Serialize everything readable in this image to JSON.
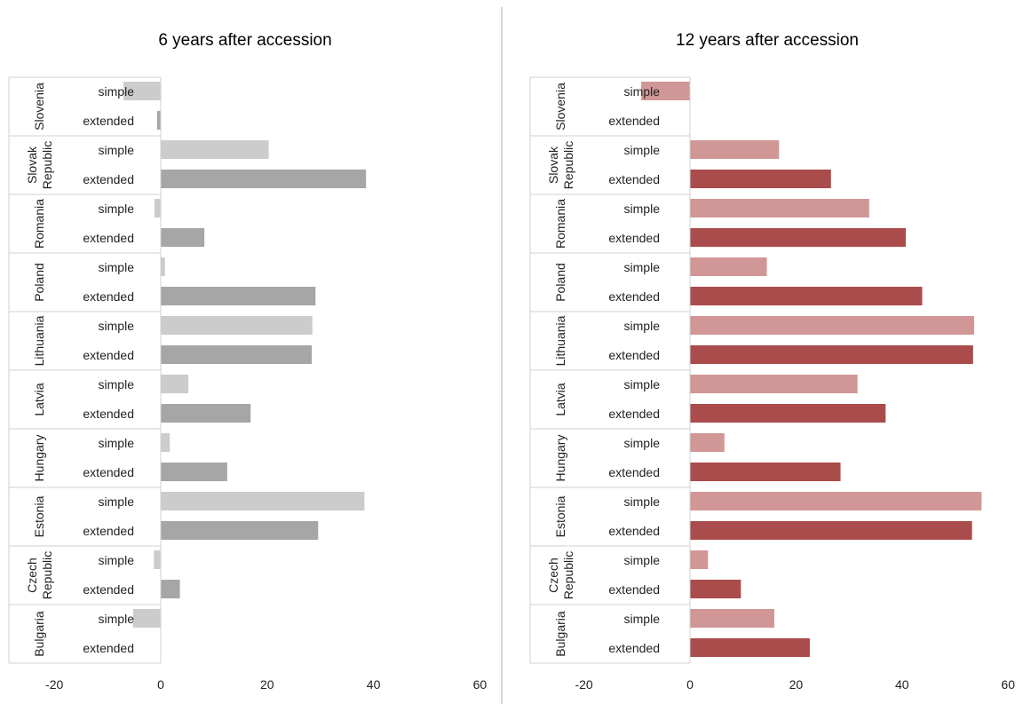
{
  "chart_data": [
    {
      "type": "bar",
      "orientation": "horizontal",
      "title": "6 years after accession",
      "countries": [
        "Slovenia",
        "Slovak Republic",
        "Romania",
        "Poland",
        "Lithuania",
        "Latvia",
        "Hungary",
        "Estonia",
        "Czech Republic",
        "Bulgaria"
      ],
      "country_label_lines": [
        [
          "Slovenia"
        ],
        [
          "Slovak",
          "Republic"
        ],
        [
          "Romania"
        ],
        [
          "Poland"
        ],
        [
          "Lithuania"
        ],
        [
          "Latvia"
        ],
        [
          "Hungary"
        ],
        [
          "Estonia"
        ],
        [
          "Czech",
          "Republic"
        ],
        [
          "Bulgaria"
        ]
      ],
      "subcategories": [
        "simple",
        "extended"
      ],
      "series": [
        {
          "name": "simple",
          "values": [
            -7,
            20.3,
            -1.2,
            0.8,
            28.5,
            5.2,
            1.7,
            38.3,
            -1.3,
            -5.2
          ]
        },
        {
          "name": "extended",
          "values": [
            -0.7,
            38.6,
            8.2,
            29.1,
            28.4,
            16.9,
            12.5,
            29.6,
            3.6,
            null
          ]
        }
      ],
      "colors": {
        "simple": "#cccccc",
        "extended": "#a6a6a6"
      },
      "xlim": [
        -20,
        60
      ],
      "xticks": [
        "-20",
        "0",
        "20",
        "40",
        "60"
      ],
      "xlabel": "",
      "ylabel": "",
      "grid": false
    },
    {
      "type": "bar",
      "orientation": "horizontal",
      "title": "12 years after accession",
      "countries": [
        "Slovenia",
        "Slovak Republic",
        "Romania",
        "Poland",
        "Lithuania",
        "Latvia",
        "Hungary",
        "Estonia",
        "Czech Republic",
        "Bulgaria"
      ],
      "country_label_lines": [
        [
          "Slovenia"
        ],
        [
          "Slovak",
          "Republic"
        ],
        [
          "Romania"
        ],
        [
          "Poland"
        ],
        [
          "Lithuania"
        ],
        [
          "Latvia"
        ],
        [
          "Hungary"
        ],
        [
          "Estonia"
        ],
        [
          "Czech",
          "Republic"
        ],
        [
          "Bulgaria"
        ]
      ],
      "subcategories": [
        "simple",
        "extended"
      ],
      "series": [
        {
          "name": "simple",
          "values": [
            -9.2,
            16.8,
            33.8,
            14.5,
            53.6,
            31.6,
            6.5,
            55,
            3.4,
            15.9
          ]
        },
        {
          "name": "extended",
          "values": [
            null,
            26.6,
            40.7,
            43.8,
            53.4,
            36.9,
            28.4,
            53.2,
            9.6,
            22.6
          ]
        }
      ],
      "colors": {
        "simple": "#d09796",
        "extended": "#aa4c4b"
      },
      "xlim": [
        -20,
        60
      ],
      "xticks": [
        "-20",
        "0",
        "20",
        "40",
        "60"
      ],
      "xlabel": "",
      "ylabel": "",
      "grid": false
    }
  ]
}
